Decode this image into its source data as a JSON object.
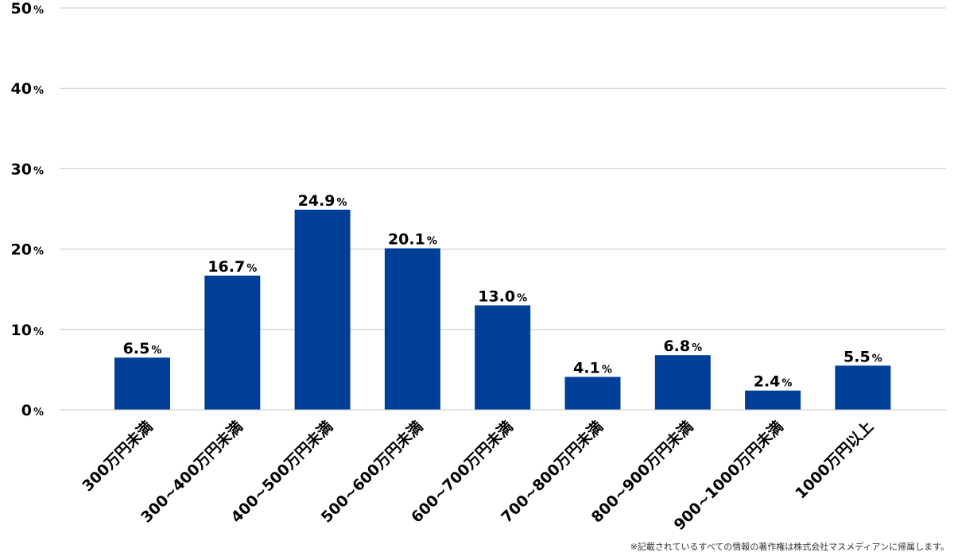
{
  "chart_data": {
    "type": "bar",
    "categories": [
      "300万円未満",
      "300~400万円未満",
      "400~500万円未満",
      "500~600万円未満",
      "600~700万円未満",
      "700~800万円未満",
      "800~900万円未満",
      "900~1000万円未満",
      "1000万円以上"
    ],
    "values": [
      6.5,
      16.7,
      24.9,
      20.1,
      13.0,
      4.1,
      6.8,
      2.4,
      5.5
    ],
    "value_labels": [
      "6.5",
      "16.7",
      "24.9",
      "20.1",
      "13.0",
      "4.1",
      "6.8",
      "2.4",
      "5.5"
    ],
    "unit": "%",
    "ylim": [
      0,
      50
    ],
    "yticks": [
      0,
      10,
      20,
      30,
      40,
      50
    ],
    "grid": true,
    "bar_color": "#003f98",
    "grid_color": "#c8c8c8"
  },
  "footnote": "※記載されているすべての情報の著作権は株式会社マスメディアンに帰属します。"
}
